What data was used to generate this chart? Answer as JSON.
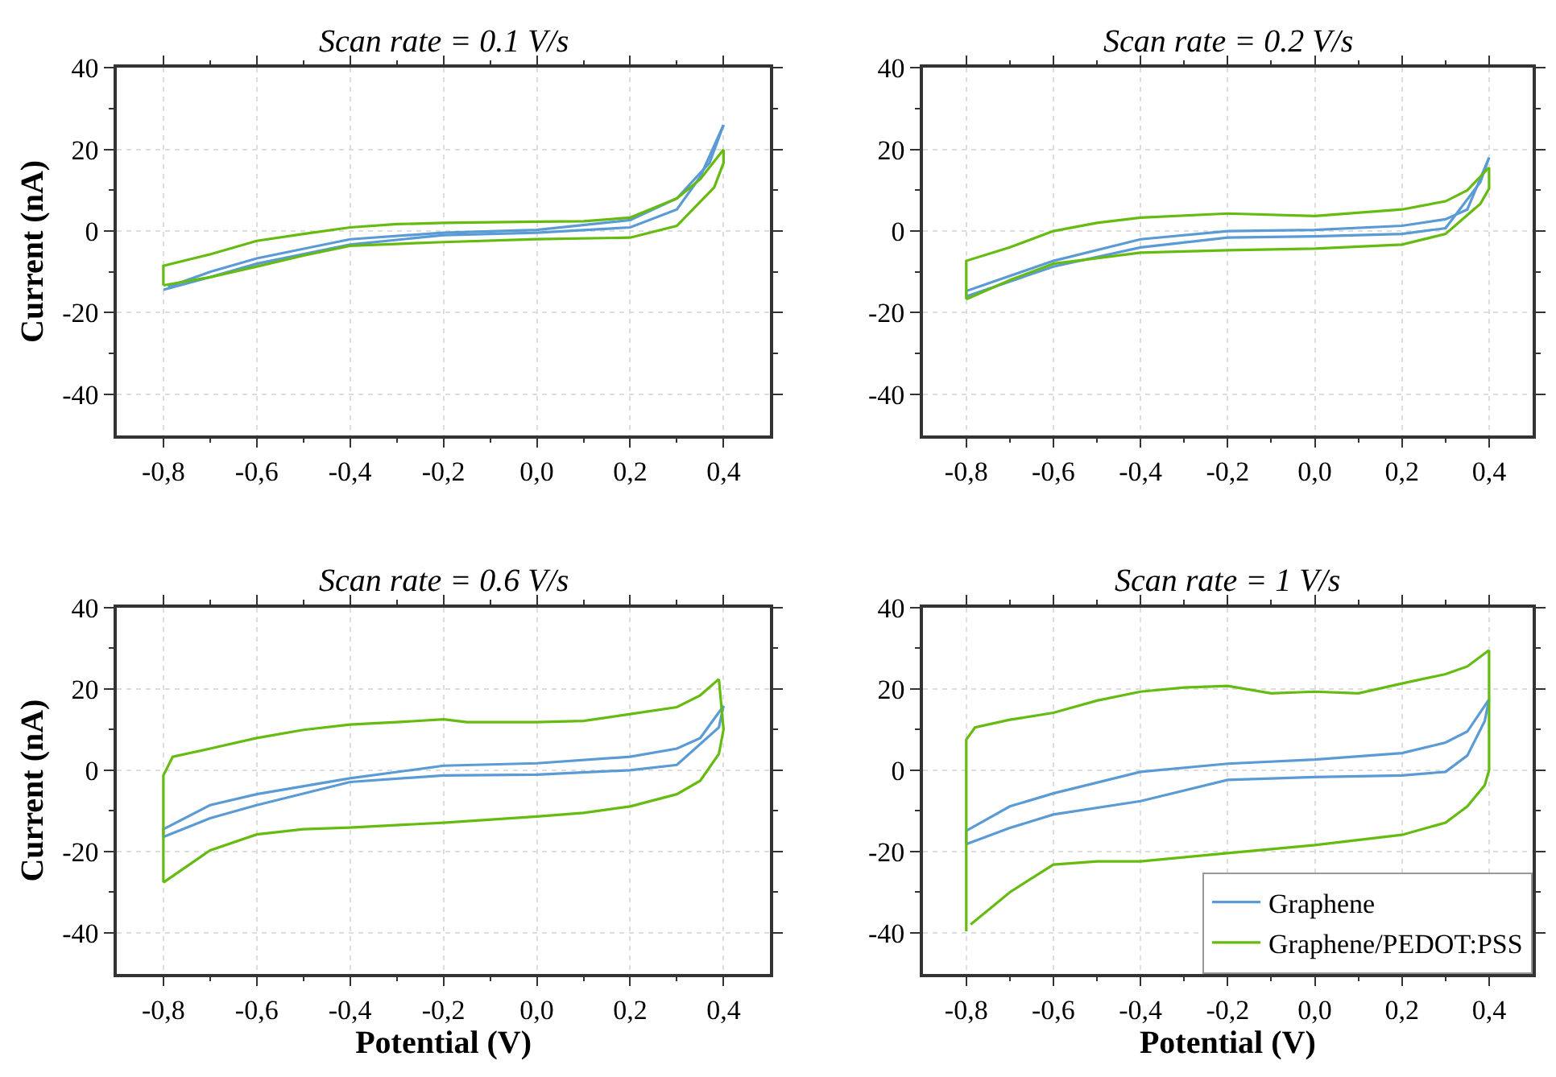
{
  "chart_data": [
    {
      "type": "line",
      "title": "Scan rate = 0.1 V/s",
      "ylabel": "Current (nA)",
      "xlim": [
        -0.9,
        0.5
      ],
      "ylim": [
        -50,
        40
      ],
      "grid": true,
      "legend": false,
      "line_style": "solid",
      "marker": "none",
      "xticks": [
        {
          "value": -0.8,
          "label": "-0,8"
        },
        {
          "value": -0.6,
          "label": "-0,6"
        },
        {
          "value": -0.4,
          "label": "-0,4"
        },
        {
          "value": -0.2,
          "label": "-0,2"
        },
        {
          "value": 0,
          "label": "0,0"
        },
        {
          "value": 0.2,
          "label": "0,2"
        },
        {
          "value": 0.4,
          "label": "0,4"
        },
        {
          "value": -0.7,
          "label": null
        },
        {
          "value": -0.5,
          "label": null
        },
        {
          "value": -0.3,
          "label": null
        },
        {
          "value": -0.1,
          "label": null
        },
        {
          "value": 0.1,
          "label": null
        },
        {
          "value": 0.3,
          "label": null
        }
      ],
      "yticks": [
        -40,
        -20,
        0,
        20,
        40,
        {
          "value": -30,
          "label": null
        },
        {
          "value": -10,
          "label": null
        },
        {
          "value": 10,
          "label": null
        },
        {
          "value": 30,
          "label": null
        }
      ],
      "series": [
        {
          "color": "#5b9bd5",
          "x": [
            -0.79,
            -0.7,
            -0.6,
            -0.4,
            -0.2,
            0,
            0.2,
            0.3,
            0.37,
            0.4
          ],
          "values": [
            -13.7,
            -10,
            -6.7,
            -2,
            -0.4,
            0.3,
            2.7,
            8,
            16.7,
            26
          ]
        },
        {
          "color": "#5b9bd5",
          "x": [
            0.4,
            0.35,
            0.3,
            0.2,
            0,
            -0.2,
            -0.4,
            -0.6,
            -0.7,
            -0.8
          ],
          "values": [
            26,
            13.3,
            5.3,
            0.9,
            -0.4,
            -1,
            -3.3,
            -8,
            -11.3,
            -14.4
          ]
        },
        {
          "color": "#66bb11",
          "x": [
            -0.8,
            -0.8,
            -0.7,
            -0.6,
            -0.5,
            -0.4,
            -0.3,
            -0.2,
            0,
            0.1,
            0.2,
            0.3,
            0.35,
            0.4
          ],
          "values": [
            -13.3,
            -8.5,
            -5.7,
            -2.4,
            -0.7,
            0.9,
            1.7,
            2,
            2.3,
            2.4,
            3.3,
            8,
            12.7,
            20
          ]
        },
        {
          "color": "#66bb11",
          "x": [
            0.4,
            0.4,
            0.38,
            0.3,
            0.2,
            0,
            -0.2,
            -0.4,
            -0.5,
            -0.6,
            -0.7,
            -0.8
          ],
          "values": [
            20,
            16.7,
            10.7,
            1.3,
            -1.6,
            -2,
            -2.7,
            -3.6,
            -6,
            -8.7,
            -11.3,
            -13.3
          ]
        }
      ]
    },
    {
      "type": "line",
      "title": "Scan rate = 0.2 V/s",
      "xlim": [
        -0.9,
        0.5
      ],
      "ylim": [
        -50,
        40
      ],
      "grid": true,
      "legend": false,
      "line_style": "solid",
      "marker": "none",
      "xticks": [
        {
          "value": -0.8,
          "label": "-0,8"
        },
        {
          "value": -0.6,
          "label": "-0,6"
        },
        {
          "value": -0.4,
          "label": "-0,4"
        },
        {
          "value": -0.2,
          "label": "-0,2"
        },
        {
          "value": 0,
          "label": "0,0"
        },
        {
          "value": 0.2,
          "label": "0,2"
        },
        {
          "value": 0.4,
          "label": "0,4"
        },
        {
          "value": -0.7,
          "label": null
        },
        {
          "value": -0.5,
          "label": null
        },
        {
          "value": -0.3,
          "label": null
        },
        {
          "value": -0.1,
          "label": null
        },
        {
          "value": 0.1,
          "label": null
        },
        {
          "value": 0.3,
          "label": null
        }
      ],
      "yticks": [
        -40,
        -20,
        0,
        20,
        40,
        {
          "value": -30,
          "label": null
        },
        {
          "value": -10,
          "label": null
        },
        {
          "value": 10,
          "label": null
        },
        {
          "value": 30,
          "label": null
        }
      ],
      "series": [
        {
          "color": "#5b9bd5",
          "x": [
            -0.8,
            -0.8,
            -0.6,
            -0.4,
            -0.2,
            0,
            0.2,
            0.3,
            0.35,
            0.4
          ],
          "values": [
            -16,
            -14.7,
            -7.3,
            -2,
            0,
            0.3,
            1.3,
            2.9,
            5.3,
            18
          ]
        },
        {
          "color": "#5b9bd5",
          "x": [
            0.4,
            0.38,
            0.3,
            0.2,
            0,
            -0.2,
            -0.4,
            -0.6,
            -0.8
          ],
          "values": [
            18,
            12,
            0.7,
            -0.7,
            -1.3,
            -1.6,
            -4,
            -8.7,
            -16
          ]
        },
        {
          "color": "#66bb11",
          "x": [
            -0.8,
            -0.8,
            -0.7,
            -0.6,
            -0.5,
            -0.4,
            -0.2,
            0,
            0.2,
            0.3,
            0.35,
            0.4
          ],
          "values": [
            -16.7,
            -7.3,
            -4,
            0,
            2,
            3.3,
            4.3,
            3.7,
            5.3,
            7.3,
            10,
            15.6
          ]
        },
        {
          "color": "#66bb11",
          "x": [
            0.4,
            0.4,
            0.38,
            0.3,
            0.2,
            0,
            -0.2,
            -0.4,
            -0.6,
            -0.7,
            -0.8
          ],
          "values": [
            15.6,
            10.4,
            6.7,
            -0.7,
            -3.3,
            -4.3,
            -4.7,
            -5.3,
            -8,
            -12,
            -16.7
          ]
        }
      ]
    },
    {
      "type": "line",
      "title": "Scan rate = 0.6 V/s",
      "xlabel": "Potential (V)",
      "ylabel": "Current (nA)",
      "xlim": [
        -0.9,
        0.5
      ],
      "ylim": [
        -50,
        40
      ],
      "grid": true,
      "legend": false,
      "line_style": "solid",
      "marker": "none",
      "xticks": [
        {
          "value": -0.8,
          "label": "-0,8"
        },
        {
          "value": -0.6,
          "label": "-0,6"
        },
        {
          "value": -0.4,
          "label": "-0,4"
        },
        {
          "value": -0.2,
          "label": "-0,2"
        },
        {
          "value": 0,
          "label": "0,0"
        },
        {
          "value": 0.2,
          "label": "0,2"
        },
        {
          "value": 0.4,
          "label": "0,4"
        },
        {
          "value": -0.7,
          "label": null
        },
        {
          "value": -0.5,
          "label": null
        },
        {
          "value": -0.3,
          "label": null
        },
        {
          "value": -0.1,
          "label": null
        },
        {
          "value": 0.1,
          "label": null
        },
        {
          "value": 0.3,
          "label": null
        }
      ],
      "yticks": [
        -40,
        -20,
        0,
        20,
        40,
        {
          "value": -30,
          "label": null
        },
        {
          "value": -10,
          "label": null
        },
        {
          "value": 10,
          "label": null
        },
        {
          "value": 30,
          "label": null
        }
      ],
      "series": [
        {
          "color": "#5b9bd5",
          "x": [
            -0.8,
            -0.8,
            -0.7,
            -0.6,
            -0.4,
            -0.2,
            0,
            0.2,
            0.3,
            0.35,
            0.4
          ],
          "values": [
            -16.4,
            -14.5,
            -8.6,
            -5.9,
            -2,
            1.1,
            1.7,
            3.3,
            5.3,
            7.9,
            15.8
          ]
        },
        {
          "color": "#5b9bd5",
          "x": [
            0.4,
            0.39,
            0.3,
            0.2,
            0,
            -0.2,
            -0.4,
            -0.6,
            -0.7,
            -0.8
          ],
          "values": [
            15.8,
            10.5,
            1.3,
            0,
            -1.1,
            -1.3,
            -2.9,
            -8.6,
            -11.8,
            -16.4
          ]
        },
        {
          "color": "#66bb11",
          "x": [
            -0.8,
            -0.8,
            -0.78,
            -0.7,
            -0.6,
            -0.5,
            -0.4,
            -0.3,
            -0.2,
            -0.15,
            0,
            0.1,
            0.2,
            0.3,
            0.35,
            0.39
          ],
          "values": [
            -27.6,
            -1.3,
            3.3,
            5.3,
            7.9,
            9.9,
            11.2,
            11.8,
            12.5,
            11.8,
            11.8,
            12.1,
            13.8,
            15.5,
            18.4,
            22.4
          ]
        },
        {
          "color": "#66bb11",
          "x": [
            0.39,
            0.4,
            0.39,
            0.35,
            0.3,
            0.2,
            0.1,
            0,
            -0.2,
            -0.4,
            -0.5,
            -0.6,
            -0.7,
            -0.8
          ],
          "values": [
            22.4,
            10,
            4,
            -2.6,
            -5.9,
            -8.9,
            -10.5,
            -11.4,
            -12.9,
            -14.1,
            -14.5,
            -15.8,
            -19.7,
            -27.6
          ]
        }
      ]
    },
    {
      "type": "line",
      "title": "Scan rate = 1 V/s",
      "xlabel": "Potential (V)",
      "xlim": [
        -0.9,
        0.5
      ],
      "ylim": [
        -50,
        40
      ],
      "grid": true,
      "legend": "bottom right",
      "line_style": "solid",
      "marker": "none",
      "xticks": [
        {
          "value": -0.8,
          "label": "-0,8"
        },
        {
          "value": -0.6,
          "label": "-0,6"
        },
        {
          "value": -0.4,
          "label": "-0,4"
        },
        {
          "value": -0.2,
          "label": "-0,2"
        },
        {
          "value": 0,
          "label": "0,0"
        },
        {
          "value": 0.2,
          "label": "0,2"
        },
        {
          "value": 0.4,
          "label": "0,4"
        },
        {
          "value": -0.7,
          "label": null
        },
        {
          "value": -0.5,
          "label": null
        },
        {
          "value": -0.3,
          "label": null
        },
        {
          "value": -0.1,
          "label": null
        },
        {
          "value": 0.1,
          "label": null
        },
        {
          "value": 0.3,
          "label": null
        }
      ],
      "yticks": [
        -40,
        -20,
        0,
        20,
        40,
        {
          "value": -30,
          "label": null
        },
        {
          "value": -10,
          "label": null
        },
        {
          "value": 10,
          "label": null
        },
        {
          "value": 30,
          "label": null
        }
      ],
      "series": [
        {
          "name": "Graphene",
          "color": "#5b9bd5",
          "x": [
            -0.8,
            -0.8,
            -0.7,
            -0.6,
            -0.4,
            -0.2,
            0,
            0.2,
            0.3,
            0.35,
            0.4
          ],
          "values": [
            -18.2,
            -14.9,
            -8.9,
            -5.7,
            -0.4,
            1.6,
            2.6,
            4.2,
            6.8,
            9.5,
            17.4
          ]
        },
        {
          "color": "#5b9bd5",
          "x": [
            0.4,
            0.39,
            0.35,
            0.3,
            0.2,
            0,
            -0.2,
            -0.4,
            -0.6,
            -0.7,
            -0.8
          ],
          "values": [
            17.4,
            12.1,
            3.6,
            -0.4,
            -1.3,
            -1.7,
            -2.4,
            -7.6,
            -10.9,
            -14.2,
            -18.2
          ]
        },
        {
          "name": "Graphene/PEDOT:PSS",
          "color": "#66bb11",
          "x": [
            -0.8,
            -0.8,
            -0.78,
            -0.7,
            -0.6,
            -0.5,
            -0.4,
            -0.3,
            -0.2,
            -0.1,
            0,
            0.1,
            0.2,
            0.3,
            0.35,
            0.4
          ],
          "values": [
            -39.6,
            7.5,
            10.5,
            12.4,
            14.1,
            17.1,
            19.3,
            20.3,
            20.7,
            18.9,
            19.3,
            18.9,
            21.3,
            23.6,
            25.5,
            29.5
          ]
        },
        {
          "color": "#66bb11",
          "x": [
            0.4,
            0.4,
            0.39,
            0.35,
            0.3,
            0.2,
            0,
            -0.2,
            -0.4,
            -0.5,
            -0.6,
            -0.7,
            -0.79
          ],
          "values": [
            29.5,
            0,
            -3.7,
            -8.9,
            -12.9,
            -15.9,
            -18.4,
            -20.4,
            -22.4,
            -22.4,
            -23.2,
            -30,
            -37.9
          ]
        }
      ]
    }
  ]
}
